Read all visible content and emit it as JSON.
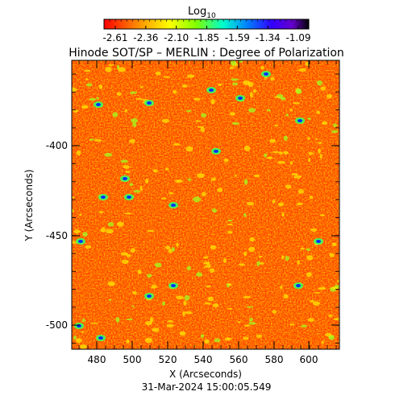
{
  "colorbar": {
    "title_main": "Log",
    "title_sub": "10",
    "tick_labels": [
      "-2.61",
      "-2.36",
      "-2.10",
      "-1.85",
      "-1.59",
      "-1.34",
      "-1.09"
    ],
    "colors": [
      "#ff0000",
      "#ff8000",
      "#ffff00",
      "#80ff00",
      "#00ff80",
      "#00ffff",
      "#0080ff",
      "#0000ff",
      "#000040"
    ]
  },
  "title": "Hinode SOT/SP – MERLIN : Degree of Polarization",
  "x_axis": {
    "label": "X (Arcseconds)",
    "ticks": [
      "480",
      "500",
      "520",
      "540",
      "560",
      "580",
      "600"
    ]
  },
  "y_axis": {
    "label": "Y (Arcseconds)",
    "ticks": [
      "-400",
      "-450",
      "-500"
    ]
  },
  "timestamp": "31-Mar-2024 15:00:05.549"
}
